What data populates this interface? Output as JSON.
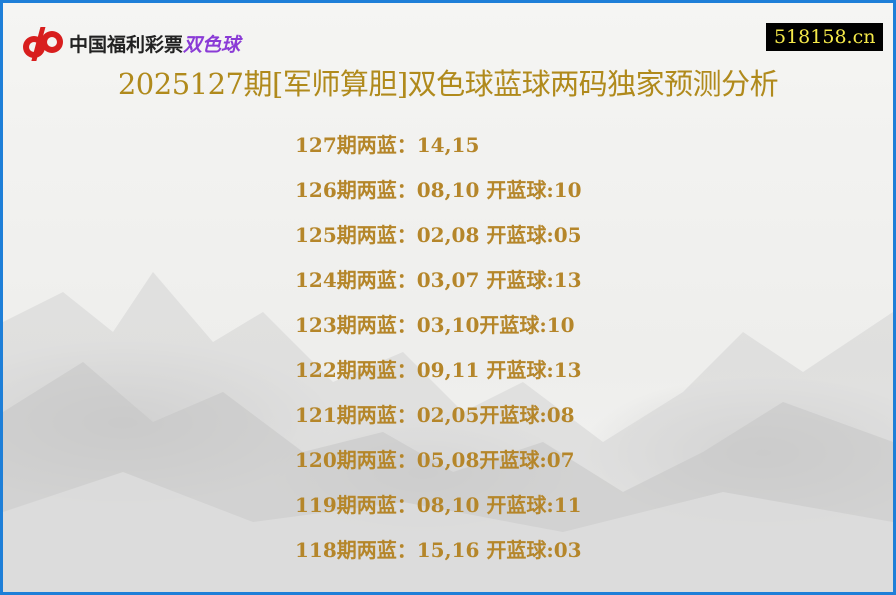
{
  "header": {
    "logo_text": "中国福利彩票",
    "logo_sub": "双色球",
    "site": "518158.cn",
    "title": "2025127期[军师算胆]双色球蓝球两码独家预测分析"
  },
  "colors": {
    "border": "#1e7fd8",
    "title": "#b08a1c",
    "rows": "#b5862a",
    "site_bg": "#000000",
    "site_text": "#f5e94a"
  },
  "rows": [
    "127期两蓝：14,15",
    "126期两蓝：08,10 开蓝球:10",
    "125期两蓝：02,08 开蓝球:05",
    "124期两蓝：03,07 开蓝球:13",
    "123期两蓝：03,10开蓝球:10",
    "122期两蓝：09,11 开蓝球:13",
    "121期两蓝：02,05开蓝球:08",
    "120期两蓝：05,08开蓝球:07",
    "119期两蓝：08,10 开蓝球:11",
    "118期两蓝：15,16 开蓝球:03"
  ]
}
